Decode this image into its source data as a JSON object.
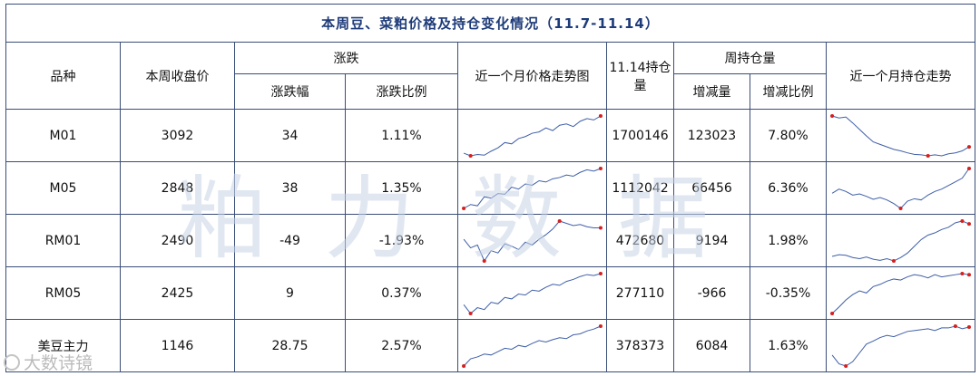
{
  "title": "本周豆、菜粕价格及持仓变化情况（11.7-11.14）",
  "headers": {
    "variety": "品种",
    "close": "本周收盘价",
    "change_group": "涨跌",
    "change_amt": "涨跌幅",
    "change_pct": "涨跌比例",
    "price_trend": "近一个月价格走势图",
    "oi": "11.14持仓量",
    "oi_group": "周持仓量",
    "oi_change": "增减量",
    "oi_change_pct": "增减比例",
    "oi_trend": "近一个月持仓走势"
  },
  "rows": [
    {
      "variety": "M01",
      "close": "3092",
      "change_amt": "34",
      "change_pct": "1.11%",
      "oi": "1700146",
      "oi_change": "123023",
      "oi_change_pct": "7.80%",
      "price_spark": [
        30,
        26,
        28,
        27,
        33,
        38,
        46,
        44,
        52,
        55,
        60,
        62,
        68,
        64,
        72,
        74,
        70,
        78,
        82,
        80,
        86
      ],
      "oi_spark": [
        92,
        88,
        90,
        78,
        65,
        52,
        40,
        35,
        30,
        25,
        22,
        18,
        15,
        14,
        12,
        14,
        12,
        16,
        18,
        22,
        30
      ]
    },
    {
      "variety": "M05",
      "close": "2848",
      "change_amt": "38",
      "change_pct": "1.35%",
      "oi": "1112042",
      "oi_change": "66456",
      "oi_change_pct": "6.36%",
      "price_spark": [
        22,
        28,
        26,
        40,
        38,
        45,
        44,
        55,
        52,
        60,
        58,
        65,
        63,
        68,
        70,
        74,
        72,
        78,
        82,
        80,
        84
      ],
      "oi_spark": [
        55,
        62,
        58,
        52,
        54,
        50,
        45,
        48,
        44,
        38,
        30,
        42,
        46,
        44,
        52,
        58,
        62,
        68,
        74,
        80,
        96
      ]
    },
    {
      "variety": "RM01",
      "close": "2490",
      "change_amt": "-49",
      "change_pct": "-1.93%",
      "oi": "472680",
      "oi_change": "9194",
      "oi_change_pct": "1.98%",
      "price_spark": [
        60,
        45,
        50,
        22,
        40,
        36,
        52,
        48,
        42,
        55,
        50,
        60,
        68,
        78,
        92,
        88,
        84,
        86,
        82,
        80,
        80
      ],
      "oi_spark": [
        32,
        35,
        34,
        30,
        28,
        31,
        27,
        25,
        28,
        24,
        30,
        38,
        50,
        62,
        70,
        74,
        80,
        84,
        92,
        95,
        90
      ]
    },
    {
      "variety": "RM05",
      "close": "2425",
      "change_amt": "9",
      "change_pct": "0.37%",
      "oi": "277110",
      "oi_change": "-966",
      "oi_change_pct": "-0.35%",
      "price_spark": [
        30,
        12,
        24,
        20,
        35,
        32,
        45,
        42,
        52,
        50,
        60,
        58,
        66,
        72,
        70,
        78,
        82,
        88,
        92,
        90,
        94
      ],
      "oi_spark": [
        20,
        32,
        45,
        55,
        62,
        58,
        70,
        74,
        80,
        84,
        82,
        88,
        92,
        90,
        86,
        92,
        88,
        90,
        92,
        94,
        92
      ]
    },
    {
      "variety": "美豆主力",
      "close": "1146",
      "change_amt": "28.75",
      "change_pct": "2.57%",
      "oi": "378373",
      "oi_change": "6084",
      "oi_change_pct": "1.63%",
      "price_spark": [
        5,
        20,
        24,
        30,
        28,
        35,
        42,
        40,
        48,
        45,
        52,
        58,
        55,
        60,
        64,
        62,
        70,
        72,
        78,
        82,
        88
      ],
      "oi_spark": [
        30,
        10,
        5,
        15,
        35,
        55,
        62,
        70,
        75,
        72,
        78,
        84,
        86,
        88,
        90,
        86,
        92,
        92,
        96,
        90,
        94
      ]
    }
  ],
  "watermark": "粕力数据",
  "logo": "大数诗镜",
  "colors": {
    "line": "#3f5fa8",
    "marker": "#d52020",
    "border": "#3a4e78",
    "title": "#1f3c7a"
  }
}
